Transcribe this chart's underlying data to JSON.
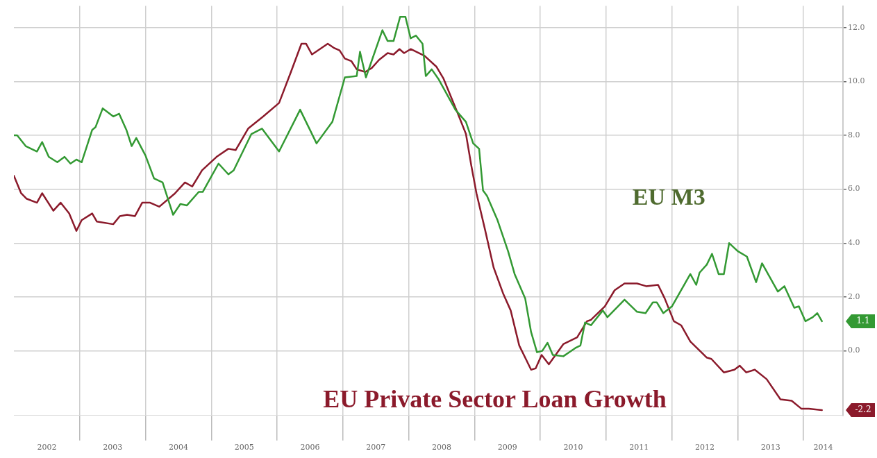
{
  "chart_data": {
    "type": "line",
    "xlim": [
      2002,
      2014.6
    ],
    "xticks": [
      {
        "value": 2002.5,
        "label": "2002"
      },
      {
        "value": 2003,
        "label": null
      },
      {
        "value": 2003.5,
        "label": "2003"
      },
      {
        "value": 2004,
        "label": null
      },
      {
        "value": 2004.5,
        "label": "2004"
      },
      {
        "value": 2005,
        "label": null
      },
      {
        "value": 2005.5,
        "label": "2005"
      },
      {
        "value": 2006,
        "label": null
      },
      {
        "value": 2006.5,
        "label": "2006"
      },
      {
        "value": 2007,
        "label": null
      },
      {
        "value": 2007.5,
        "label": "2007"
      },
      {
        "value": 2008,
        "label": null
      },
      {
        "value": 2008.5,
        "label": "2008"
      },
      {
        "value": 2009,
        "label": null
      },
      {
        "value": 2009.5,
        "label": "2009"
      },
      {
        "value": 2010,
        "label": null
      },
      {
        "value": 2010.5,
        "label": "2010"
      },
      {
        "value": 2011,
        "label": null
      },
      {
        "value": 2011.5,
        "label": "2011"
      },
      {
        "value": 2012,
        "label": null
      },
      {
        "value": 2012.5,
        "label": "2012"
      },
      {
        "value": 2013,
        "label": null
      },
      {
        "value": 2013.5,
        "label": "2013"
      },
      {
        "value": 2014,
        "label": null
      },
      {
        "value": 2014.3,
        "label": "2014"
      }
    ],
    "ylim": [
      -2.4,
      12.8
    ],
    "yticks": [
      {
        "value": 0,
        "label": "0.0"
      },
      {
        "value": 2,
        "label": "2.0"
      },
      {
        "value": 4,
        "label": "4.0"
      },
      {
        "value": 6,
        "label": "6.0"
      },
      {
        "value": 8,
        "label": "8.0"
      },
      {
        "value": 10,
        "label": "10.0"
      },
      {
        "value": 12,
        "label": "12.0"
      }
    ],
    "annotations": [
      "1.1",
      "-2.2"
    ],
    "grid": true,
    "legend": false,
    "marker": "none",
    "line_style": "solid",
    "series": [
      {
        "name": "EU M3",
        "color": "#339933",
        "x": [
          2002.0,
          2002.05,
          2002.18,
          2002.35,
          2002.43,
          2002.53,
          2002.66,
          2002.77,
          2002.86,
          2002.95,
          2003.03,
          2003.19,
          2003.24,
          2003.35,
          2003.51,
          2003.6,
          2003.71,
          2003.79,
          2003.86,
          2004.0,
          2004.13,
          2004.26,
          2004.42,
          2004.53,
          2004.63,
          2004.81,
          2004.87,
          2005.11,
          2005.26,
          2005.34,
          2005.61,
          2005.77,
          2006.03,
          2006.35,
          2006.6,
          2006.84,
          2007.03,
          2007.21,
          2007.26,
          2007.35,
          2007.6,
          2007.68,
          2007.77,
          2007.87,
          2007.95,
          2008.03,
          2008.11,
          2008.21,
          2008.26,
          2008.35,
          2008.45,
          2008.71,
          2008.87,
          2008.98,
          2009.07,
          2009.13,
          2009.19,
          2009.35,
          2009.51,
          2009.61,
          2009.77,
          2009.86,
          2009.95,
          2010.03,
          2010.11,
          2010.19,
          2010.35,
          2010.53,
          2010.61,
          2010.68,
          2010.77,
          2010.95,
          2011.02,
          2011.28,
          2011.47,
          2011.6,
          2011.71,
          2011.77,
          2011.87,
          2012.0,
          2012.28,
          2012.37,
          2012.42,
          2012.53,
          2012.61,
          2012.71,
          2012.79,
          2012.87,
          2013.0,
          2013.14,
          2013.28,
          2013.37,
          2013.61,
          2013.71,
          2013.86,
          2013.93,
          2014.03,
          2014.14,
          2014.21,
          2014.28
        ],
        "values": [
          8.0,
          8.0,
          7.6,
          7.4,
          7.75,
          7.2,
          7.0,
          7.2,
          6.95,
          7.1,
          7.0,
          8.2,
          8.3,
          9.0,
          8.7,
          8.8,
          8.2,
          7.6,
          7.9,
          7.25,
          6.4,
          6.25,
          5.05,
          5.45,
          5.4,
          5.9,
          5.9,
          6.95,
          6.55,
          6.7,
          8.05,
          8.25,
          7.4,
          8.95,
          7.7,
          8.5,
          10.15,
          10.2,
          11.1,
          10.15,
          11.9,
          11.5,
          11.5,
          12.4,
          12.4,
          11.6,
          11.7,
          11.4,
          10.2,
          10.45,
          10.1,
          8.95,
          8.5,
          7.7,
          7.5,
          5.95,
          5.75,
          4.85,
          3.7,
          2.85,
          1.95,
          0.7,
          -0.05,
          0.0,
          0.3,
          -0.15,
          -0.2,
          0.1,
          0.2,
          1.05,
          0.95,
          1.5,
          1.25,
          1.9,
          1.45,
          1.4,
          1.8,
          1.8,
          1.4,
          1.65,
          2.85,
          2.45,
          2.9,
          3.2,
          3.6,
          2.85,
          2.85,
          4.0,
          3.7,
          3.5,
          2.55,
          3.25,
          2.2,
          2.4,
          1.6,
          1.65,
          1.1,
          1.25,
          1.4,
          1.1
        ]
      },
      {
        "name": "EU Private Sector Loan Growth",
        "color": "#8b1a2b",
        "x": [
          2002.0,
          2002.11,
          2002.19,
          2002.35,
          2002.43,
          2002.6,
          2002.71,
          2002.84,
          2002.95,
          2003.03,
          2003.19,
          2003.26,
          2003.51,
          2003.61,
          2003.72,
          2003.84,
          2003.95,
          2004.07,
          2004.21,
          2004.45,
          2004.6,
          2004.71,
          2004.86,
          2005.08,
          2005.26,
          2005.37,
          2005.56,
          2005.79,
          2006.03,
          2006.21,
          2006.37,
          2006.44,
          2006.53,
          2006.77,
          2006.86,
          2006.95,
          2007.03,
          2007.13,
          2007.21,
          2007.34,
          2007.44,
          2007.55,
          2007.68,
          2007.77,
          2007.86,
          2007.93,
          2008.03,
          2008.24,
          2008.42,
          2008.53,
          2008.74,
          2008.87,
          2008.95,
          2009.03,
          2009.16,
          2009.29,
          2009.44,
          2009.55,
          2009.68,
          2009.86,
          2009.93,
          2010.02,
          2010.13,
          2010.35,
          2010.56,
          2010.71,
          2010.77,
          2010.98,
          2011.13,
          2011.28,
          2011.47,
          2011.61,
          2011.79,
          2011.89,
          2012.03,
          2012.14,
          2012.28,
          2012.53,
          2012.6,
          2012.79,
          2012.95,
          2013.03,
          2013.13,
          2013.26,
          2013.44,
          2013.65,
          2013.82,
          2013.97,
          2014.08,
          2014.28
        ],
        "values": [
          6.5,
          5.85,
          5.65,
          5.5,
          5.85,
          5.2,
          5.5,
          5.1,
          4.45,
          4.85,
          5.1,
          4.8,
          4.7,
          5.0,
          5.05,
          5.0,
          5.5,
          5.5,
          5.35,
          5.85,
          6.25,
          6.1,
          6.7,
          7.2,
          7.5,
          7.45,
          8.25,
          8.7,
          9.2,
          10.35,
          11.4,
          11.4,
          11.0,
          11.4,
          11.25,
          11.15,
          10.85,
          10.75,
          10.45,
          10.35,
          10.5,
          10.8,
          11.05,
          11.0,
          11.2,
          11.05,
          11.2,
          10.95,
          10.55,
          10.1,
          8.85,
          8.05,
          6.9,
          5.85,
          4.5,
          3.1,
          2.1,
          1.5,
          0.2,
          -0.7,
          -0.65,
          -0.15,
          -0.5,
          0.25,
          0.5,
          1.1,
          1.15,
          1.65,
          2.25,
          2.5,
          2.5,
          2.4,
          2.45,
          1.95,
          1.1,
          0.95,
          0.35,
          -0.25,
          -0.3,
          -0.8,
          -0.7,
          -0.55,
          -0.8,
          -0.7,
          -1.05,
          -1.8,
          -1.85,
          -2.15,
          -2.15,
          -2.2
        ]
      }
    ]
  }
}
